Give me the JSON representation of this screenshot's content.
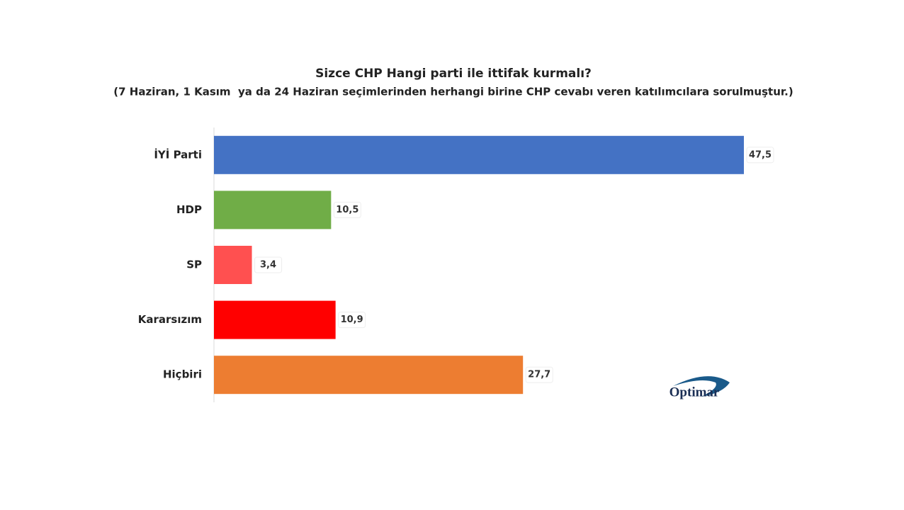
{
  "chart_data": {
    "type": "barh",
    "title": "Sizce CHP Hangi parti ile ittifak kurmalı?",
    "subtitle": "(7 Haziran, 1 Kasım  ya da 24 Haziran seçimlerinden herhangi birine CHP cevabı veren katılımcılara sorulmuştur.)",
    "categories": [
      "İYİ Parti",
      "HDP",
      "SP",
      "Kararsızım",
      "Hiçbiri"
    ],
    "values": [
      47.5,
      10.5,
      3.4,
      10.9,
      27.7
    ],
    "value_labels": [
      "47,5",
      "10,5",
      "3,4",
      "10,9",
      "27,7"
    ],
    "colors": [
      "#4472c4",
      "#70ad47",
      "#ff5050",
      "#ff0000",
      "#ed7d31"
    ],
    "logo": "Optimar"
  }
}
